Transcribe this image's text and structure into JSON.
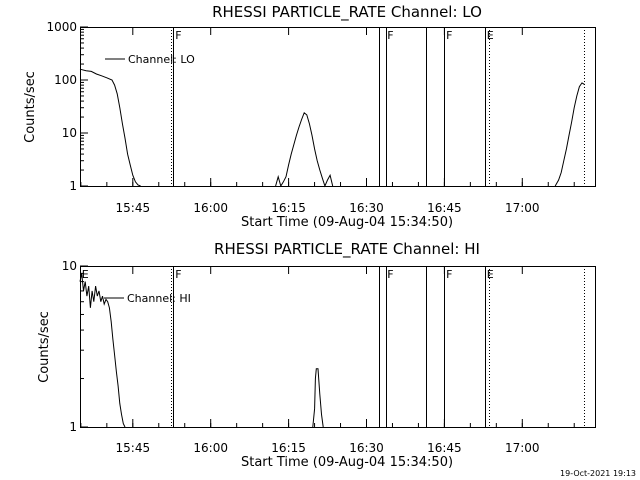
{
  "footer": {
    "timestamp": "19-Oct-2021 19:13"
  },
  "chart_data": [
    {
      "type": "line",
      "title": "RHESSI PARTICLE_RATE Channel: LO",
      "xlabel": "Start Time (09-Aug-04 15:34:50)",
      "ylabel": "Counts/sec",
      "yscale": "log",
      "xlim": [
        "15:34:50",
        "17:14:00"
      ],
      "ylim": [
        1,
        1000
      ],
      "xtick_labels": [
        "15:45",
        "16:00",
        "16:15",
        "16:30",
        "16:45",
        "17:00"
      ],
      "ytick_labels": [
        "1",
        "10",
        "100",
        "1000"
      ],
      "legend": {
        "entries": [
          "Channel: LO"
        ],
        "position": "top-left"
      },
      "grid": false,
      "series": [
        {
          "name": "Channel: LO",
          "x": [
            "15:34:50",
            "15:36:00",
            "15:37:00",
            "15:38:00",
            "15:39:00",
            "15:40:00",
            "15:41:00",
            "15:41:30",
            "15:42:00",
            "15:42:30",
            "15:43:00",
            "15:43:30",
            "15:44:00",
            "15:44:30",
            "15:45:00",
            "15:45:30",
            "15:46:00",
            "15:46:30"
          ],
          "y": [
            160,
            150,
            145,
            130,
            120,
            110,
            100,
            80,
            55,
            30,
            15,
            8,
            4,
            2.5,
            1.6,
            1.2,
            1.05,
            1
          ],
          "segments": [
            0,
            18
          ]
        },
        {
          "name": "Channel: LO",
          "x": [
            "16:12:30",
            "16:13:00",
            "16:13:30",
            "16:14:00",
            "16:14:30",
            "16:15:00",
            "16:15:30",
            "16:16:00",
            "16:16:30",
            "16:17:00",
            "16:17:30",
            "16:18:00",
            "16:18:30",
            "16:19:00",
            "16:19:30",
            "16:20:00",
            "16:20:30",
            "16:21:00",
            "16:21:30",
            "16:22:00",
            "16:22:30",
            "16:23:00",
            "16:23:30"
          ],
          "y": [
            1,
            1.5,
            1,
            1.2,
            1.5,
            2.5,
            4,
            6,
            9,
            13,
            18,
            24,
            22,
            15,
            9,
            5,
            3,
            2,
            1.4,
            1,
            1.3,
            1.6,
            1
          ]
        },
        {
          "name": "Channel: LO",
          "x": [
            "17:06:20",
            "17:07:00",
            "17:07:30",
            "17:08:00",
            "17:08:30",
            "17:09:00",
            "17:09:30",
            "17:10:00",
            "17:10:30",
            "17:11:00",
            "17:11:30",
            "17:12:00"
          ],
          "y": [
            1,
            1.3,
            1.8,
            3,
            5,
            9,
            16,
            30,
            50,
            75,
            88,
            82
          ]
        }
      ],
      "vlines_solid": [
        "15:52:50",
        "16:32:20",
        "16:33:40",
        "16:41:30",
        "16:45:00",
        "16:52:50"
      ],
      "vlines_dotted": [
        "15:52:20",
        "16:53:40",
        "17:11:50"
      ],
      "markers": [
        {
          "label": "F",
          "at": "15:53:10"
        },
        {
          "label": "F",
          "at": "16:34:00"
        },
        {
          "label": "F",
          "at": "16:45:20"
        },
        {
          "label": "E",
          "at": "16:53:10"
        }
      ]
    },
    {
      "type": "line",
      "title": "RHESSI PARTICLE_RATE Channel: HI",
      "xlabel": "Start Time (09-Aug-04 15:34:50)",
      "ylabel": "Counts/sec",
      "yscale": "log",
      "xlim": [
        "15:34:50",
        "17:14:00"
      ],
      "ylim": [
        1,
        10
      ],
      "xtick_labels": [
        "15:45",
        "16:00",
        "16:15",
        "16:30",
        "16:45",
        "17:00"
      ],
      "ytick_labels": [
        "1",
        "10"
      ],
      "legend": {
        "entries": [
          "Channel: HI"
        ],
        "position": "top-left"
      },
      "grid": false,
      "series": [
        {
          "name": "Channel: HI",
          "x": [
            "15:34:50",
            "15:35:10",
            "15:35:30",
            "15:35:50",
            "15:36:10",
            "15:36:30",
            "15:36:50",
            "15:37:10",
            "15:37:30",
            "15:37:50",
            "15:38:10",
            "15:38:30",
            "15:38:50",
            "15:39:10",
            "15:39:30",
            "15:39:50",
            "15:40:10",
            "15:40:30",
            "15:40:50",
            "15:41:10",
            "15:41:30",
            "15:41:50",
            "15:42:10",
            "15:42:30",
            "15:42:50",
            "15:43:10",
            "15:43:30"
          ],
          "y": [
            8,
            9,
            7,
            8,
            6.5,
            7.5,
            5.5,
            7,
            6,
            7.5,
            6.5,
            7,
            6,
            6.5,
            5.8,
            6.2,
            6,
            5.5,
            4.5,
            3.5,
            2.8,
            2.2,
            1.8,
            1.4,
            1.2,
            1.05,
            1
          ]
        },
        {
          "name": "Channel: HI",
          "x": [
            "16:19:40",
            "16:20:00",
            "16:20:10",
            "16:20:20",
            "16:20:40",
            "16:21:00",
            "16:21:20",
            "16:21:40"
          ],
          "y": [
            1,
            1.3,
            2,
            2.3,
            2.3,
            1.6,
            1.2,
            1
          ]
        }
      ],
      "vlines_solid": [
        "15:52:50",
        "16:32:20",
        "16:33:40",
        "16:41:30",
        "16:45:00",
        "16:52:50"
      ],
      "vlines_dotted": [
        "15:52:20",
        "16:53:40",
        "17:11:50"
      ],
      "markers": [
        {
          "label": "E",
          "at": "15:35:10"
        },
        {
          "label": "F",
          "at": "15:53:10"
        },
        {
          "label": "F",
          "at": "16:34:00"
        },
        {
          "label": "F",
          "at": "16:45:20"
        },
        {
          "label": "E",
          "at": "16:53:10"
        }
      ]
    }
  ]
}
